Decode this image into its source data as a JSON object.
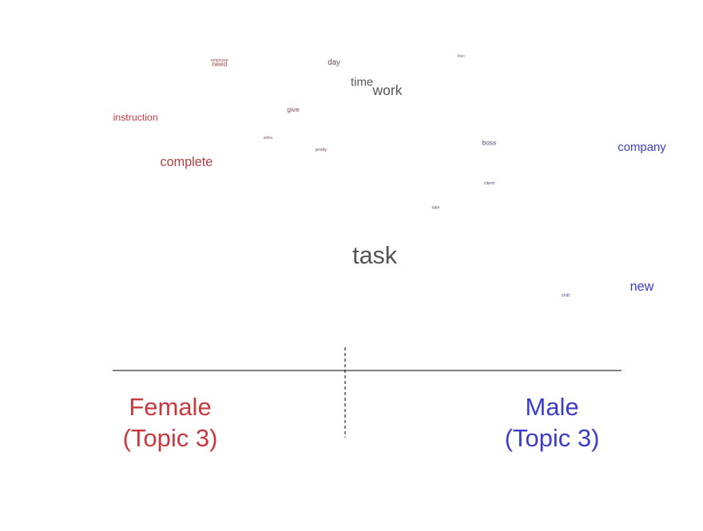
{
  "chart_data": {
    "type": "scatter",
    "title": "",
    "xlabel": "",
    "ylabel": "",
    "group_labels": {
      "left": {
        "line1": "Female",
        "line2": "(Topic 3)",
        "color": "#c8393f"
      },
      "right": {
        "line1": "Male",
        "line2": "(Topic 3)",
        "color": "#3c3cc8"
      }
    },
    "colors": {
      "female": "#c8393f",
      "neutral": "#555555",
      "male": "#3c3cc8"
    },
    "x_range": [
      -1,
      1
    ],
    "y_range": [
      0,
      1
    ],
    "words": [
      {
        "text": "employee",
        "x": -0.58,
        "y": 0.955,
        "weight": 0.02,
        "lean": -0.55
      },
      {
        "text": "need",
        "x": -0.58,
        "y": 0.94,
        "weight": 0.15,
        "lean": -0.6
      },
      {
        "text": "then",
        "x": 0.37,
        "y": 0.97,
        "weight": 0.01,
        "lean": 0.1
      },
      {
        "text": "day",
        "x": -0.13,
        "y": 0.945,
        "weight": 0.2,
        "lean": -0.15
      },
      {
        "text": "time",
        "x": -0.02,
        "y": 0.875,
        "weight": 0.4,
        "lean": 0.0
      },
      {
        "text": "work",
        "x": 0.08,
        "y": 0.845,
        "weight": 0.5,
        "lean": 0.0
      },
      {
        "text": "give",
        "x": -0.29,
        "y": 0.79,
        "weight": 0.15,
        "lean": -0.35
      },
      {
        "text": "instruction",
        "x": -0.91,
        "y": 0.76,
        "weight": 0.3,
        "lean": -0.95
      },
      {
        "text": "extra",
        "x": -0.39,
        "y": 0.7,
        "weight": 0.02,
        "lean": -0.3
      },
      {
        "text": "pretty",
        "x": -0.18,
        "y": 0.66,
        "weight": 0.05,
        "lean": -0.2
      },
      {
        "text": "boss",
        "x": 0.48,
        "y": 0.68,
        "weight": 0.15,
        "lean": 0.25
      },
      {
        "text": "company",
        "x": 1.08,
        "y": 0.66,
        "weight": 0.4,
        "lean": 1.0
      },
      {
        "text": "complete",
        "x": -0.71,
        "y": 0.61,
        "weight": 0.45,
        "lean": -0.85
      },
      {
        "text": "client",
        "x": 0.48,
        "y": 0.55,
        "weight": 0.05,
        "lean": 0.35
      },
      {
        "text": "take",
        "x": 0.27,
        "y": 0.47,
        "weight": 0.03,
        "lean": 0.0
      },
      {
        "text": "task",
        "x": 0.03,
        "y": 0.29,
        "weight": 1.0,
        "lean": 0.0
      },
      {
        "text": "new",
        "x": 1.08,
        "y": 0.2,
        "weight": 0.45,
        "lean": 1.0
      },
      {
        "text": "shift",
        "x": 0.78,
        "y": 0.18,
        "weight": 0.05,
        "lean": 0.6
      }
    ]
  }
}
